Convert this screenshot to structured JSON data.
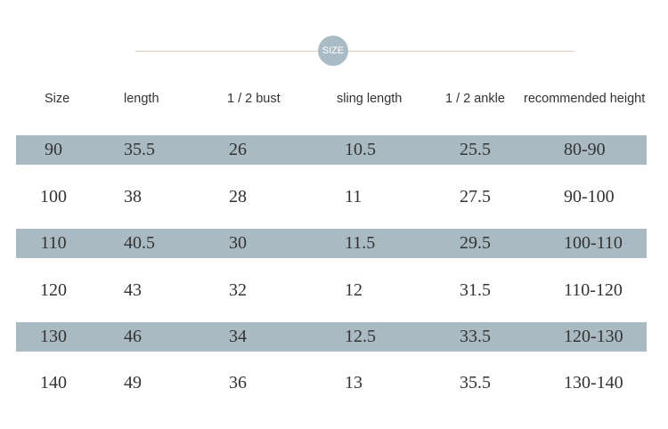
{
  "badge": "SIZE",
  "table": {
    "headers": [
      "Size",
      "length",
      "1 / 2 bust",
      "sling length",
      "1 / 2 ankle",
      "recommended height"
    ],
    "rows": [
      [
        "90",
        "35.5",
        "26",
        "10.5",
        "25.5",
        "80-90"
      ],
      [
        "100",
        "38",
        "28",
        "11",
        "27.5",
        "90-100"
      ],
      [
        "110",
        "40.5",
        "30",
        "11.5",
        "29.5",
        "100-110"
      ],
      [
        "120",
        "43",
        "32",
        "12",
        "31.5",
        "110-120"
      ],
      [
        "130",
        "46",
        "34",
        "12.5",
        "33.5",
        "120-130"
      ],
      [
        "140",
        "49",
        "36",
        "13",
        "35.5",
        "130-140"
      ]
    ]
  }
}
